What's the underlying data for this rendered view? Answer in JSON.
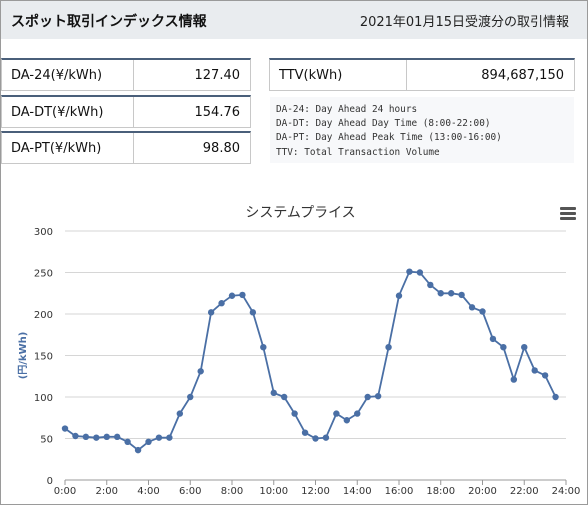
{
  "header": {
    "title": "スポット取引インデックス情報",
    "date_text": "2021年01月15日受渡分の取引情報"
  },
  "indices": [
    {
      "label": "DA-24(¥/kWh)",
      "value": "127.40"
    },
    {
      "label": "DA-DT(¥/kWh)",
      "value": "154.76"
    },
    {
      "label": "DA-PT(¥/kWh)",
      "value": "98.80"
    }
  ],
  "ttv": {
    "label": "TTV(kWh)",
    "value": "894,687,150"
  },
  "legend_lines": [
    "DA-24: Day Ahead 24 hours",
    "DA-DT: Day Ahead Day Time (8:00-22:00)",
    "DA-PT: Day Ahead Peak Time (13:00-16:00)",
    "TTV: Total Transaction Volume"
  ],
  "colors": {
    "line": "#4a6fa5",
    "header_bg": "#e9ecef",
    "card_border": "#4a5f7a"
  },
  "menu_icon": "hamburger-menu-icon",
  "chart_data": {
    "type": "line",
    "title": "システムプライス",
    "ylabel": "(円/kWh)",
    "xlabel": "",
    "x_tick_labels": [
      "0:00",
      "2:00",
      "4:00",
      "6:00",
      "8:00",
      "10:00",
      "12:00",
      "14:00",
      "16:00",
      "18:00",
      "20:00",
      "22:00",
      "24:00"
    ],
    "y_ticks": [
      0,
      50,
      100,
      150,
      200,
      250,
      300
    ],
    "xlim": [
      0,
      24
    ],
    "ylim": [
      0,
      300
    ],
    "grid": true,
    "series": [
      {
        "x": [
          0,
          0.5,
          1,
          1.5,
          2,
          2.5,
          3,
          3.5,
          4,
          4.5,
          5,
          5.5,
          6,
          6.5,
          7,
          7.5,
          8,
          8.5,
          9,
          9.5,
          10,
          10.5,
          11,
          11.5,
          12,
          12.5,
          13,
          13.5,
          14,
          14.5,
          15,
          15.5,
          16,
          16.5,
          17,
          17.5,
          18,
          18.5,
          19,
          19.5,
          20,
          20.5,
          21,
          21.5,
          22,
          22.5,
          23,
          23.5
        ],
        "values": [
          62,
          53,
          52,
          51,
          52,
          52,
          46,
          36,
          46,
          51,
          51,
          80,
          100,
          131,
          202,
          213,
          222,
          223,
          202,
          160,
          105,
          100,
          80,
          57,
          50,
          51,
          80,
          72,
          80,
          100,
          101,
          160,
          222,
          251,
          250,
          235,
          225,
          225,
          223,
          208,
          203,
          170,
          160,
          121,
          160,
          132,
          126,
          100
        ]
      }
    ]
  }
}
